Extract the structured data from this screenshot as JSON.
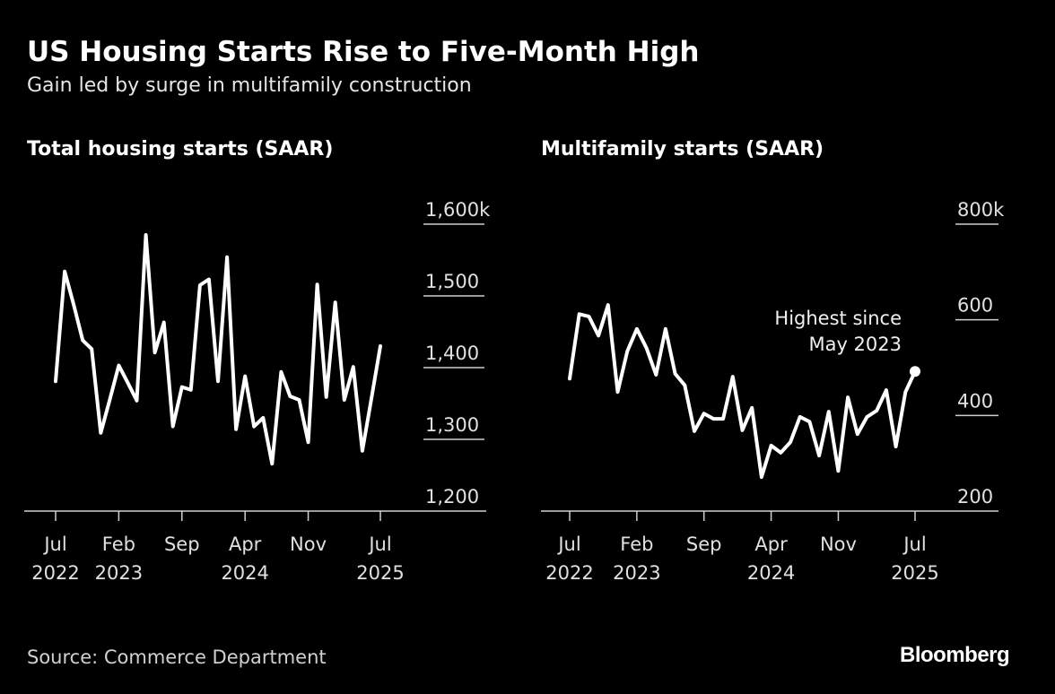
{
  "title": "US Housing Starts Rise to Five-Month High",
  "subtitle": "Gain led by surge in multifamily construction",
  "source": "Source: Commerce Department",
  "logo": "Bloomberg",
  "colors": {
    "background": "#000000",
    "line": "#ffffff",
    "text": "#e0e0e0"
  },
  "chart_data": [
    {
      "type": "line",
      "title": "Total housing starts (SAAR)",
      "x_start": "2022-07",
      "x_end": "2025-07",
      "frequency": "monthly",
      "x_ticks": [
        {
          "l1": "Jul",
          "l2": "2022",
          "m": 0
        },
        {
          "l1": "Feb",
          "l2": "2023",
          "m": 7
        },
        {
          "l1": "Sep",
          "l2": "",
          "m": 14
        },
        {
          "l1": "Apr",
          "l2": "2024",
          "m": 21
        },
        {
          "l1": "Nov",
          "l2": "",
          "m": 28
        },
        {
          "l1": "Jul",
          "l2": "2025",
          "m": 36
        }
      ],
      "y_ticks": [
        {
          "v": 1600,
          "label": "1,600k"
        },
        {
          "v": 1500,
          "label": "1,500"
        },
        {
          "v": 1400,
          "label": "1,400"
        },
        {
          "v": 1300,
          "label": "1,300"
        },
        {
          "v": 1200,
          "label": "1,200"
        }
      ],
      "ylim": [
        1200,
        1600
      ],
      "values": [
        1381,
        1534,
        1488,
        1438,
        1426,
        1309,
        1355,
        1403,
        1379,
        1354,
        1585,
        1421,
        1463,
        1318,
        1373,
        1369,
        1515,
        1523,
        1381,
        1554,
        1314,
        1388,
        1318,
        1330,
        1266,
        1394,
        1360,
        1355,
        1296,
        1516,
        1359,
        1491,
        1355,
        1401,
        1284,
        1356,
        1430
      ]
    },
    {
      "type": "line",
      "title": "Multifamily starts (SAAR)",
      "x_start": "2022-07",
      "x_end": "2025-07",
      "frequency": "monthly",
      "x_ticks": [
        {
          "l1": "Jul",
          "l2": "2022",
          "m": 0
        },
        {
          "l1": "Feb",
          "l2": "2023",
          "m": 7
        },
        {
          "l1": "Sep",
          "l2": "",
          "m": 14
        },
        {
          "l1": "Apr",
          "l2": "2024",
          "m": 21
        },
        {
          "l1": "Nov",
          "l2": "",
          "m": 28
        },
        {
          "l1": "Jul",
          "l2": "2025",
          "m": 36
        }
      ],
      "y_ticks": [
        {
          "v": 800,
          "label": "800k"
        },
        {
          "v": 600,
          "label": "600"
        },
        {
          "v": 400,
          "label": "400"
        },
        {
          "v": 200,
          "label": "200"
        }
      ],
      "ylim": [
        200,
        800
      ],
      "values": [
        477,
        612,
        607,
        567,
        631,
        449,
        534,
        581,
        541,
        485,
        581,
        487,
        463,
        367,
        404,
        393,
        393,
        481,
        369,
        416,
        271,
        337,
        322,
        344,
        397,
        387,
        316,
        408,
        284,
        438,
        361,
        397,
        410,
        453,
        335,
        449,
        492
      ],
      "annotation": {
        "line1": "Highest since",
        "line2": "May 2023",
        "marker": "last-point"
      }
    }
  ]
}
